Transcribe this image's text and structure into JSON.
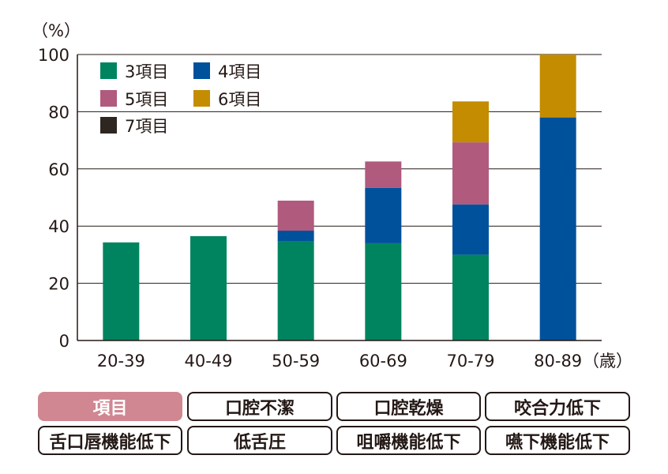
{
  "chart_data": {
    "type": "bar",
    "stacked": true,
    "unit_label": "（%）",
    "x_unit_label": "（歳）",
    "categories": [
      "20-39",
      "40-49",
      "50-59",
      "60-69",
      "70-79",
      "80-89"
    ],
    "ylim": [
      0,
      100
    ],
    "yticks": [
      "0",
      "20",
      "40",
      "60",
      "80",
      "100"
    ],
    "grid": true,
    "legend_position": "top-left",
    "series": [
      {
        "name": "3項目",
        "color": "#00845f",
        "values": [
          34.3,
          36.5,
          34.8,
          34.0,
          30.0,
          0
        ]
      },
      {
        "name": "4項目",
        "color": "#00519c",
        "values": [
          0,
          0,
          3.6,
          19.4,
          17.6,
          78.0
        ]
      },
      {
        "name": "5項目",
        "color": "#b05a7d",
        "values": [
          0,
          0,
          10.5,
          9.2,
          21.7,
          0
        ]
      },
      {
        "name": "6項目",
        "color": "#c48c00",
        "values": [
          0,
          0,
          0,
          0,
          14.3,
          22.0
        ]
      },
      {
        "name": "7項目",
        "color": "#2e2620",
        "values": [
          0,
          0,
          0,
          0,
          0,
          0
        ]
      }
    ]
  },
  "tags": [
    {
      "label": "項目",
      "active": true
    },
    {
      "label": "口腔不潔",
      "active": false
    },
    {
      "label": "口腔乾燥",
      "active": false
    },
    {
      "label": "咬合力低下",
      "active": false
    },
    {
      "label": "舌口唇機能低下",
      "active": false
    },
    {
      "label": "低舌圧",
      "active": false
    },
    {
      "label": "咀嚼機能低下",
      "active": false
    },
    {
      "label": "嚥下機能低下",
      "active": false
    }
  ]
}
